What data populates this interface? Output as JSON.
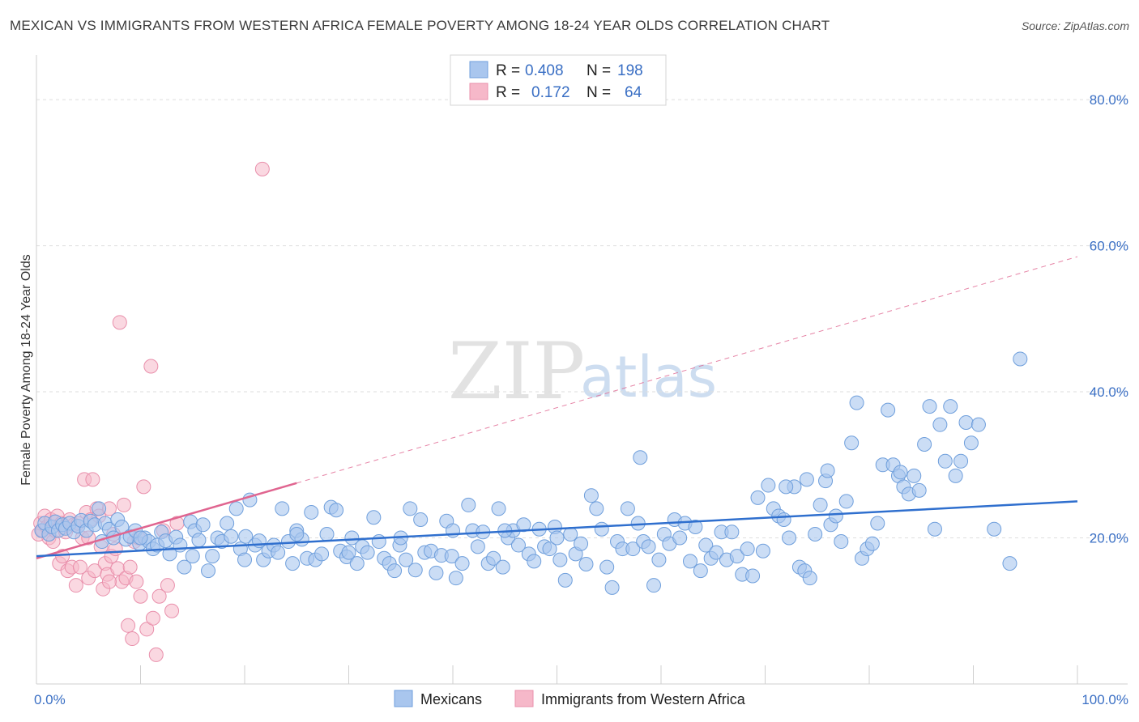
{
  "title": "MEXICAN VS IMMIGRANTS FROM WESTERN AFRICA FEMALE POVERTY AMONG 18-24 YEAR OLDS CORRELATION CHART",
  "source": "Source: ZipAtlas.com",
  "watermark": {
    "zip": "ZIP",
    "atlas": "atlas"
  },
  "legend_stats": [
    {
      "r_label": "R = ",
      "r_value": "0.408",
      "n_label": "N = ",
      "n_value": "198"
    },
    {
      "r_label": "R = ",
      "r_value": "0.172",
      "n_label": "N = ",
      "n_value": "64"
    }
  ],
  "chart_data": {
    "type": "scatter",
    "ylabel": "Female Poverty Among 18-24 Year Olds",
    "xlabel": "",
    "xlim": [
      0,
      100
    ],
    "ylim": [
      0,
      85
    ],
    "x_tick_labels": [
      {
        "value": 0,
        "label": "0.0%"
      },
      {
        "value": 100,
        "label": "100.0%"
      }
    ],
    "y_tick_labels": [
      {
        "value": 20,
        "label": "20.0%"
      },
      {
        "value": 40,
        "label": "40.0%"
      },
      {
        "value": 60,
        "label": "60.0%"
      },
      {
        "value": 80,
        "label": "80.0%"
      }
    ],
    "y_gridlines": [
      20,
      40,
      60,
      80
    ],
    "x_minor_ticks": [
      0,
      10,
      20,
      30,
      40,
      50,
      60,
      70,
      80,
      90,
      100
    ],
    "grid": true,
    "legend_position": "bottom",
    "colors": {
      "blue_fill": "#a9c6ee",
      "blue_stroke": "#6f9fdc",
      "blue_line": "#2f6fce",
      "pink_fill": "#f6b8c9",
      "pink_stroke": "#e98fab",
      "pink_line": "#e06590",
      "tick_text": "#3a6fc4"
    },
    "series": [
      {
        "name": "Mexicans",
        "color": "blue",
        "trend": {
          "x0": 0,
          "y0": 17.5,
          "x1": 100,
          "y1": 25.0
        },
        "points": [
          [
            0.5,
            21.0
          ],
          [
            0.8,
            22.0
          ],
          [
            1.2,
            20.5
          ],
          [
            1.5,
            21.5
          ],
          [
            1.8,
            22.2
          ],
          [
            2.1,
            21.0
          ],
          [
            2.5,
            21.8
          ],
          [
            2.8,
            21.3
          ],
          [
            3.2,
            22.0
          ],
          [
            3.6,
            20.8
          ],
          [
            4.0,
            21.6
          ],
          [
            4.3,
            22.4
          ],
          [
            4.8,
            21.0
          ],
          [
            5.2,
            22.3
          ],
          [
            5.6,
            21.8
          ],
          [
            6.0,
            24.0
          ],
          [
            6.3,
            19.5
          ],
          [
            6.6,
            22.0
          ],
          [
            7.0,
            21.2
          ],
          [
            7.4,
            20.0
          ],
          [
            7.8,
            22.5
          ],
          [
            8.2,
            21.5
          ],
          [
            8.6,
            19.8
          ],
          [
            9.0,
            20.2
          ],
          [
            9.5,
            21.0
          ],
          [
            9.9,
            19.2
          ],
          [
            10.4,
            20.0
          ],
          [
            10.8,
            19.5
          ],
          [
            11.2,
            18.5
          ],
          [
            11.6,
            19.0
          ],
          [
            12.0,
            20.8
          ],
          [
            12.4,
            19.6
          ],
          [
            12.8,
            17.8
          ],
          [
            13.4,
            20.1
          ],
          [
            13.8,
            19.0
          ],
          [
            14.2,
            16.0
          ],
          [
            14.8,
            22.2
          ],
          [
            15.2,
            21.0
          ],
          [
            15.6,
            19.7
          ],
          [
            16.0,
            21.8
          ],
          [
            16.5,
            15.5
          ],
          [
            16.9,
            17.5
          ],
          [
            17.4,
            20.0
          ],
          [
            17.8,
            19.5
          ],
          [
            18.3,
            22.0
          ],
          [
            18.7,
            20.2
          ],
          [
            19.2,
            24.0
          ],
          [
            19.6,
            18.5
          ],
          [
            20.1,
            20.2
          ],
          [
            20.5,
            25.2
          ],
          [
            21.0,
            19.0
          ],
          [
            21.4,
            19.6
          ],
          [
            21.8,
            17.0
          ],
          [
            22.3,
            18.2
          ],
          [
            22.8,
            19.0
          ],
          [
            23.2,
            18.0
          ],
          [
            23.6,
            24.0
          ],
          [
            24.2,
            19.5
          ],
          [
            24.6,
            16.5
          ],
          [
            25.0,
            21.0
          ],
          [
            25.5,
            19.8
          ],
          [
            26.0,
            17.2
          ],
          [
            26.4,
            23.5
          ],
          [
            26.8,
            17.0
          ],
          [
            27.4,
            17.8
          ],
          [
            27.9,
            20.5
          ],
          [
            28.3,
            24.2
          ],
          [
            28.8,
            23.8
          ],
          [
            29.2,
            18.2
          ],
          [
            29.8,
            17.4
          ],
          [
            30.3,
            20.0
          ],
          [
            30.8,
            16.5
          ],
          [
            31.3,
            18.8
          ],
          [
            31.8,
            18.0
          ],
          [
            32.4,
            22.8
          ],
          [
            32.9,
            19.5
          ],
          [
            33.4,
            17.2
          ],
          [
            33.9,
            16.5
          ],
          [
            34.4,
            15.5
          ],
          [
            34.9,
            19.0
          ],
          [
            35.5,
            17.0
          ],
          [
            35.9,
            24.0
          ],
          [
            36.4,
            15.6
          ],
          [
            36.9,
            22.5
          ],
          [
            37.3,
            18.0
          ],
          [
            37.9,
            18.2
          ],
          [
            38.4,
            15.2
          ],
          [
            38.9,
            17.6
          ],
          [
            39.4,
            22.3
          ],
          [
            39.9,
            17.5
          ],
          [
            40.3,
            14.5
          ],
          [
            40.9,
            16.5
          ],
          [
            41.5,
            24.5
          ],
          [
            41.9,
            21.0
          ],
          [
            42.4,
            18.8
          ],
          [
            42.9,
            20.8
          ],
          [
            43.4,
            16.5
          ],
          [
            43.9,
            17.2
          ],
          [
            44.4,
            24.0
          ],
          [
            44.8,
            16.0
          ],
          [
            45.3,
            20.0
          ],
          [
            45.8,
            21.0
          ],
          [
            46.3,
            19.0
          ],
          [
            46.8,
            21.8
          ],
          [
            47.3,
            17.8
          ],
          [
            47.8,
            16.8
          ],
          [
            48.3,
            21.2
          ],
          [
            48.8,
            18.8
          ],
          [
            49.3,
            18.5
          ],
          [
            49.8,
            21.5
          ],
          [
            50.3,
            17.0
          ],
          [
            50.8,
            14.2
          ],
          [
            51.3,
            20.5
          ],
          [
            51.8,
            17.8
          ],
          [
            52.3,
            19.2
          ],
          [
            52.8,
            16.4
          ],
          [
            53.3,
            25.8
          ],
          [
            53.8,
            24.0
          ],
          [
            54.3,
            21.2
          ],
          [
            54.8,
            16.0
          ],
          [
            55.3,
            13.2
          ],
          [
            55.8,
            19.5
          ],
          [
            56.3,
            18.5
          ],
          [
            56.8,
            24.0
          ],
          [
            57.3,
            18.5
          ],
          [
            57.8,
            22.0
          ],
          [
            58.3,
            19.5
          ],
          [
            58.8,
            18.8
          ],
          [
            59.3,
            13.5
          ],
          [
            59.8,
            17.0
          ],
          [
            60.3,
            20.5
          ],
          [
            60.8,
            19.2
          ],
          [
            61.3,
            22.5
          ],
          [
            61.8,
            20.0
          ],
          [
            62.3,
            22.0
          ],
          [
            62.8,
            16.8
          ],
          [
            63.3,
            21.5
          ],
          [
            63.8,
            15.5
          ],
          [
            64.3,
            19.0
          ],
          [
            64.8,
            17.2
          ],
          [
            65.3,
            18.0
          ],
          [
            65.8,
            20.8
          ],
          [
            66.3,
            17.0
          ],
          [
            66.8,
            20.8
          ],
          [
            67.3,
            17.5
          ],
          [
            67.8,
            15.0
          ],
          [
            68.3,
            18.5
          ],
          [
            68.8,
            14.8
          ],
          [
            69.3,
            25.5
          ],
          [
            69.8,
            18.2
          ],
          [
            70.3,
            27.2
          ],
          [
            70.8,
            24.0
          ],
          [
            71.3,
            23.0
          ],
          [
            71.8,
            22.5
          ],
          [
            72.3,
            20.0
          ],
          [
            72.8,
            27.0
          ],
          [
            73.3,
            16.0
          ],
          [
            73.8,
            15.5
          ],
          [
            74.3,
            14.5
          ],
          [
            74.8,
            20.5
          ],
          [
            75.3,
            24.5
          ],
          [
            75.8,
            27.8
          ],
          [
            76.3,
            21.8
          ],
          [
            76.8,
            23.0
          ],
          [
            77.3,
            19.5
          ],
          [
            77.8,
            25.0
          ],
          [
            78.3,
            33.0
          ],
          [
            78.8,
            38.5
          ],
          [
            79.3,
            17.2
          ],
          [
            79.8,
            18.5
          ],
          [
            80.3,
            19.2
          ],
          [
            80.8,
            22.0
          ],
          [
            81.3,
            30.0
          ],
          [
            81.8,
            37.5
          ],
          [
            82.3,
            30.0
          ],
          [
            82.8,
            28.5
          ],
          [
            83.3,
            27.0
          ],
          [
            83.8,
            26.0
          ],
          [
            84.3,
            28.5
          ],
          [
            84.8,
            26.5
          ],
          [
            85.3,
            32.8
          ],
          [
            85.8,
            38.0
          ],
          [
            86.3,
            21.2
          ],
          [
            86.8,
            35.5
          ],
          [
            87.3,
            30.5
          ],
          [
            87.8,
            38.0
          ],
          [
            88.3,
            28.5
          ],
          [
            88.8,
            30.5
          ],
          [
            89.3,
            35.8
          ],
          [
            89.8,
            33.0
          ],
          [
            94.5,
            44.5
          ],
          [
            93.5,
            16.5
          ],
          [
            92.0,
            21.2
          ],
          [
            90.5,
            35.5
          ],
          [
            83.0,
            29.0
          ],
          [
            76.0,
            29.2
          ],
          [
            74.0,
            28.0
          ],
          [
            72.0,
            27.0
          ],
          [
            58.0,
            31.0
          ],
          [
            50.0,
            20.0
          ],
          [
            45.0,
            21.0
          ],
          [
            40.0,
            21.0
          ],
          [
            35.0,
            20.0
          ],
          [
            30.0,
            18.0
          ],
          [
            25.0,
            20.5
          ],
          [
            20.0,
            17.0
          ],
          [
            15.0,
            17.5
          ],
          [
            10.0,
            20.0
          ]
        ]
      },
      {
        "name": "Immigrants from Western Africa",
        "color": "pink",
        "trend": {
          "x0": 0,
          "y0": 17.2,
          "x1": 25,
          "y1": 27.5,
          "dashed_to_x": 100,
          "dashed_to_y": 58.5
        },
        "points": [
          [
            0.2,
            20.5
          ],
          [
            0.4,
            22.0
          ],
          [
            0.6,
            21.0
          ],
          [
            0.8,
            23.0
          ],
          [
            1.0,
            21.5
          ],
          [
            1.2,
            20.0
          ],
          [
            1.4,
            22.5
          ],
          [
            1.6,
            19.5
          ],
          [
            1.8,
            21.0
          ],
          [
            2.0,
            23.0
          ],
          [
            2.2,
            16.5
          ],
          [
            2.4,
            22.0
          ],
          [
            2.6,
            21.5
          ],
          [
            2.8,
            20.8
          ],
          [
            3.0,
            15.5
          ],
          [
            3.2,
            22.5
          ],
          [
            3.4,
            16.0
          ],
          [
            3.6,
            21.8
          ],
          [
            3.8,
            13.5
          ],
          [
            4.0,
            22.0
          ],
          [
            4.2,
            16.0
          ],
          [
            4.4,
            20.0
          ],
          [
            4.6,
            28.0
          ],
          [
            4.8,
            23.5
          ],
          [
            5.0,
            14.5
          ],
          [
            5.2,
            22.5
          ],
          [
            5.4,
            28.0
          ],
          [
            5.6,
            15.5
          ],
          [
            5.8,
            24.0
          ],
          [
            6.0,
            23.0
          ],
          [
            6.2,
            18.8
          ],
          [
            6.4,
            13.0
          ],
          [
            6.6,
            16.5
          ],
          [
            6.8,
            15.0
          ],
          [
            7.0,
            24.0
          ],
          [
            7.2,
            17.5
          ],
          [
            7.4,
            20.5
          ],
          [
            7.6,
            18.5
          ],
          [
            7.8,
            15.8
          ],
          [
            8.0,
            49.5
          ],
          [
            8.2,
            14.0
          ],
          [
            8.4,
            24.5
          ],
          [
            8.6,
            14.5
          ],
          [
            8.8,
            8.0
          ],
          [
            9.0,
            16.0
          ],
          [
            9.2,
            6.2
          ],
          [
            9.4,
            19.5
          ],
          [
            9.6,
            14.0
          ],
          [
            9.8,
            20.0
          ],
          [
            10.0,
            12.0
          ],
          [
            10.3,
            27.0
          ],
          [
            10.6,
            7.5
          ],
          [
            11.0,
            43.5
          ],
          [
            11.2,
            9.0
          ],
          [
            11.5,
            4.0
          ],
          [
            11.8,
            12.0
          ],
          [
            12.2,
            21.0
          ],
          [
            12.6,
            13.5
          ],
          [
            13.0,
            10.0
          ],
          [
            13.5,
            22.0
          ],
          [
            21.7,
            70.5
          ],
          [
            5.0,
            20.0
          ],
          [
            7.0,
            14.0
          ],
          [
            2.5,
            17.5
          ]
        ]
      }
    ]
  }
}
